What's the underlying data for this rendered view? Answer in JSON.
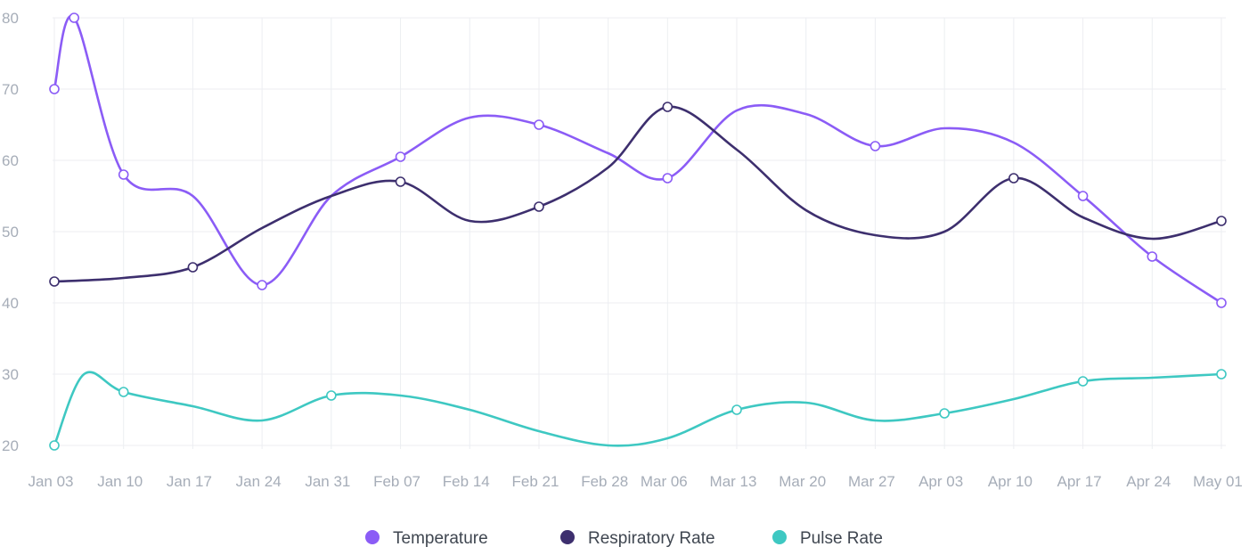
{
  "chart_data": {
    "type": "line",
    "curve": "smooth",
    "x": [
      "Jan 03",
      "Jan 10",
      "Jan 17",
      "Jan 24",
      "Jan 31",
      "Feb 07",
      "Feb 14",
      "Feb 21",
      "Feb 28",
      "Mar 06",
      "Mar 13",
      "Mar 20",
      "Mar 27",
      "Apr 03",
      "Apr 10",
      "Apr 17",
      "Apr 24",
      "May 01"
    ],
    "ylim": [
      20,
      80
    ],
    "yticks": [
      20,
      30,
      40,
      50,
      60,
      70,
      80
    ],
    "grid": true,
    "legend_position": "bottom-center",
    "series": [
      {
        "name": "Temperature",
        "color": "#8b5cf6",
        "points": [
          {
            "date": "Jan 03",
            "value": 70
          },
          {
            "date": "Jan 05",
            "value": 80
          },
          {
            "date": "Jan 10",
            "value": 58
          },
          {
            "date": "Jan 17",
            "value": 55
          },
          {
            "date": "Jan 24",
            "value": 42.5
          },
          {
            "date": "Jan 31",
            "value": 55
          },
          {
            "date": "Feb 07",
            "value": 60.5
          },
          {
            "date": "Feb 14",
            "value": 66
          },
          {
            "date": "Feb 21",
            "value": 65
          },
          {
            "date": "Feb 28",
            "value": 61
          },
          {
            "date": "Mar 06",
            "value": 57.5
          },
          {
            "date": "Mar 13",
            "value": 67
          },
          {
            "date": "Mar 20",
            "value": 66.5
          },
          {
            "date": "Mar 27",
            "value": 62
          },
          {
            "date": "Apr 03",
            "value": 64.5
          },
          {
            "date": "Apr 10",
            "value": 62.5
          },
          {
            "date": "Apr 17",
            "value": 55
          },
          {
            "date": "Apr 24",
            "value": 46.5
          },
          {
            "date": "May 01",
            "value": 40
          }
        ]
      },
      {
        "name": "Respiratory Rate",
        "color": "#3d2f6e",
        "points": [
          {
            "date": "Jan 03",
            "value": 43
          },
          {
            "date": "Jan 10",
            "value": 43.5
          },
          {
            "date": "Jan 17",
            "value": 45
          },
          {
            "date": "Jan 24",
            "value": 50.5
          },
          {
            "date": "Jan 31",
            "value": 55
          },
          {
            "date": "Feb 07",
            "value": 57
          },
          {
            "date": "Feb 14",
            "value": 51.5
          },
          {
            "date": "Feb 21",
            "value": 53.5
          },
          {
            "date": "Feb 28",
            "value": 59
          },
          {
            "date": "Mar 06",
            "value": 67.5
          },
          {
            "date": "Mar 13",
            "value": 61.5
          },
          {
            "date": "Mar 20",
            "value": 53
          },
          {
            "date": "Mar 27",
            "value": 49.5
          },
          {
            "date": "Apr 03",
            "value": 50
          },
          {
            "date": "Apr 10",
            "value": 57.5
          },
          {
            "date": "Apr 17",
            "value": 52
          },
          {
            "date": "Apr 24",
            "value": 49
          },
          {
            "date": "May 01",
            "value": 51.5
          }
        ]
      },
      {
        "name": "Pulse Rate",
        "color": "#3ec8c2",
        "points": [
          {
            "date": "Jan 03",
            "value": 20
          },
          {
            "date": "Jan 06",
            "value": 30
          },
          {
            "date": "Jan 10",
            "value": 27.5
          },
          {
            "date": "Jan 17",
            "value": 25.5
          },
          {
            "date": "Jan 24",
            "value": 23.5
          },
          {
            "date": "Jan 31",
            "value": 27
          },
          {
            "date": "Feb 07",
            "value": 27
          },
          {
            "date": "Feb 14",
            "value": 25
          },
          {
            "date": "Feb 21",
            "value": 22
          },
          {
            "date": "Feb 28",
            "value": 20
          },
          {
            "date": "Mar 06",
            "value": 21
          },
          {
            "date": "Mar 13",
            "value": 25
          },
          {
            "date": "Mar 20",
            "value": 26
          },
          {
            "date": "Mar 27",
            "value": 23.5
          },
          {
            "date": "Apr 03",
            "value": 24.5
          },
          {
            "date": "Apr 10",
            "value": 26.5
          },
          {
            "date": "Apr 17",
            "value": 29
          },
          {
            "date": "Apr 24",
            "value": 29.5
          },
          {
            "date": "May 01",
            "value": 30
          }
        ],
        "markers": [
          "Jan 03",
          "Jan 10",
          "Jan 31",
          "Mar 13",
          "Apr 03",
          "Apr 17",
          "May 01"
        ]
      }
    ],
    "markers": {
      "Temperature": [
        "Jan 03",
        "Jan 05",
        "Jan 10",
        "Jan 24",
        "Feb 07",
        "Feb 21",
        "Mar 06",
        "Mar 27",
        "Apr 17",
        "Apr 24",
        "May 01"
      ],
      "Respiratory Rate": [
        "Jan 03",
        "Jan 17",
        "Feb 07",
        "Feb 21",
        "Mar 06",
        "Apr 10",
        "May 01"
      ],
      "Pulse Rate": [
        "Jan 03",
        "Jan 10",
        "Jan 31",
        "Mar 13",
        "Apr 03",
        "Apr 17",
        "May 01"
      ]
    }
  }
}
